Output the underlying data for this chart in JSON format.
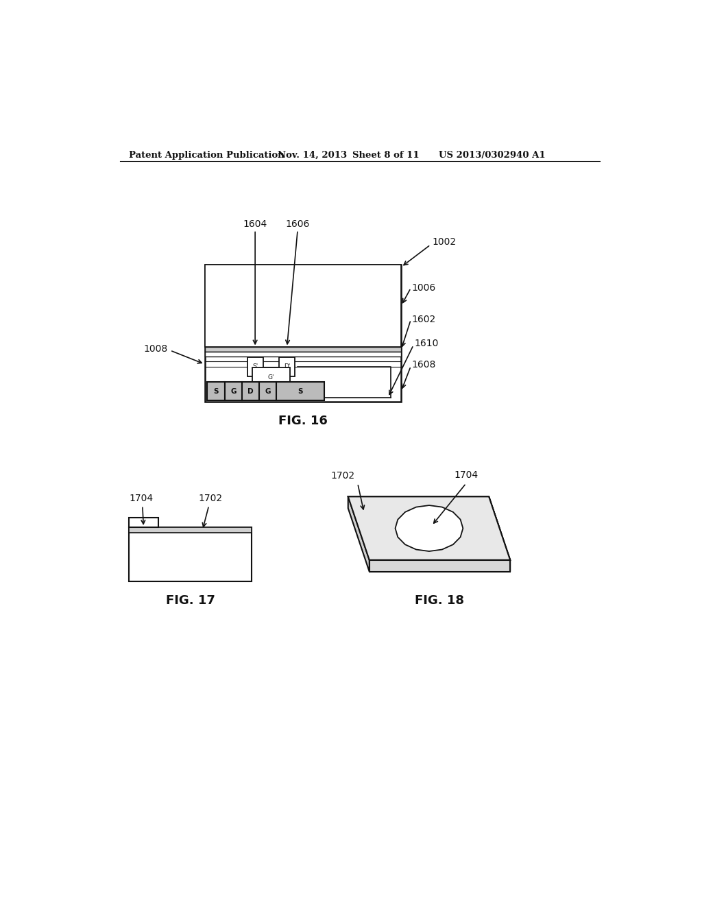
{
  "bg_color": "#ffffff",
  "header_text": "Patent Application Publication",
  "header_date": "Nov. 14, 2013",
  "header_sheet": "Sheet 8 of 11",
  "header_patent": "US 2013/0302940 A1",
  "fig16_title": "FIG. 16",
  "fig17_title": "FIG. 17",
  "fig18_title": "FIG. 18",
  "blk": "#111111"
}
